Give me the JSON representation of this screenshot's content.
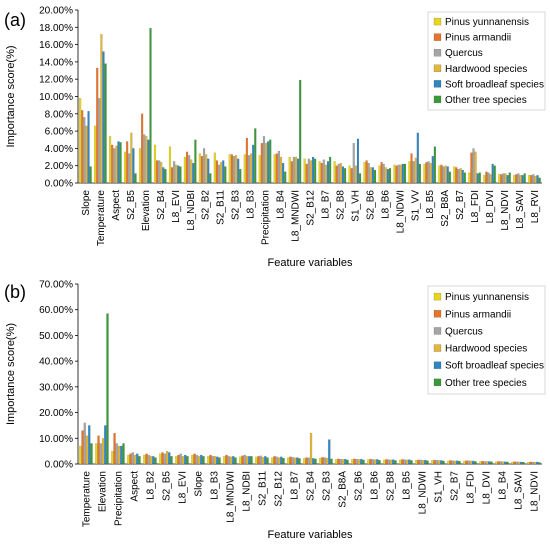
{
  "series_colors": [
    "#e8d51e",
    "#e8742c",
    "#a5a5a5",
    "#e2b73b",
    "#2f86c3",
    "#3a9a3a"
  ],
  "chart_data": [
    {
      "type": "bar",
      "panel_label": "(a)",
      "xlabel": "Feature variables",
      "ylabel": "Importance score(%)",
      "ylim": [
        0,
        20
      ],
      "yticks": [
        "0.00%",
        "2.00%",
        "4.00%",
        "6.00%",
        "8.00%",
        "10.00%",
        "12.00%",
        "14.00%",
        "16.00%",
        "18.00%",
        "20.00%"
      ],
      "legend_position": "top-right",
      "categories": [
        "Slope",
        "Temperature",
        "Aspect",
        "S2_B5",
        "Elevation",
        "S2_B4",
        "L8_EVI",
        "L8_NDBI",
        "S2_B2",
        "S2_B11",
        "S2_B3",
        "L8_B3",
        "Precipitation",
        "L8_B4",
        "L8_MNDWI",
        "S2_B12",
        "L8_B7",
        "S2_B8",
        "S1_VH",
        "S2_B6",
        "L8_B6",
        "L8_NDWI",
        "S1_VV",
        "L8_B5",
        "S2_B8A",
        "S2_B7",
        "L8_FDI",
        "L8_DVI",
        "L8_NDVI",
        "L8_SAVI",
        "L8_RVI"
      ],
      "series": [
        {
          "name": "Pinus yunnanensis",
          "values": [
            9.8,
            6.6,
            5.4,
            3.6,
            4.0,
            4.4,
            4.2,
            3.0,
            3.4,
            3.5,
            3.3,
            3.3,
            3.2,
            3.3,
            3.0,
            2.8,
            2.5,
            2.5,
            2.0,
            2.4,
            2.0,
            2.1,
            2.5,
            2.2,
            2.0,
            1.9,
            1.2,
            0.9,
            1.0,
            0.9,
            0.9
          ]
        },
        {
          "name": "Pinus armandii",
          "values": [
            8.4,
            13.3,
            4.4,
            4.8,
            8.0,
            2.6,
            1.8,
            3.6,
            3.1,
            2.6,
            3.3,
            5.2,
            4.6,
            3.4,
            2.5,
            2.2,
            2.3,
            2.0,
            1.7,
            2.6,
            2.4,
            2.0,
            3.4,
            2.4,
            2.1,
            1.8,
            3.5,
            1.3,
            1.0,
            1.0,
            0.9
          ]
        },
        {
          "name": "Quercus",
          "values": [
            7.6,
            9.8,
            4.0,
            3.4,
            5.6,
            2.6,
            2.5,
            3.2,
            4.0,
            2.1,
            3.1,
            3.2,
            5.4,
            3.7,
            3.0,
            2.8,
            2.7,
            2.2,
            4.6,
            2.3,
            2.2,
            2.1,
            2.5,
            2.5,
            1.9,
            1.6,
            4.0,
            1.2,
            1.1,
            1.1,
            1.0
          ]
        },
        {
          "name": "Hardwood species",
          "values": [
            6.6,
            17.2,
            4.3,
            5.8,
            5.4,
            2.4,
            2.1,
            2.7,
            3.3,
            2.4,
            3.2,
            3.4,
            4.6,
            3.0,
            3.0,
            2.6,
            2.1,
            2.3,
            2.0,
            1.8,
            1.8,
            2.1,
            2.9,
            2.3,
            2.0,
            1.7,
            3.6,
            1.0,
            1.1,
            0.9,
            0.8
          ]
        },
        {
          "name": "Soft broadleaf species",
          "values": [
            8.3,
            15.2,
            4.8,
            4.0,
            5.0,
            1.8,
            2.0,
            2.3,
            2.8,
            2.6,
            2.8,
            4.4,
            4.8,
            2.3,
            2.8,
            3.0,
            2.5,
            1.9,
            5.1,
            1.8,
            1.6,
            2.2,
            5.8,
            3.1,
            1.9,
            1.5,
            1.1,
            2.2,
            0.9,
            0.9,
            0.9
          ]
        },
        {
          "name": "Other tree species",
          "values": [
            1.9,
            13.8,
            4.7,
            1.1,
            17.9,
            1.6,
            1.9,
            5.0,
            1.1,
            1.9,
            1.6,
            6.3,
            5.0,
            1.3,
            11.9,
            2.8,
            3.0,
            1.7,
            1.1,
            1.5,
            1.7,
            2.2,
            2.2,
            4.2,
            1.3,
            1.2,
            1.2,
            2.0,
            1.2,
            1.1,
            0.6
          ]
        }
      ]
    },
    {
      "type": "bar",
      "panel_label": "(b)",
      "xlabel": "Feature variables",
      "ylabel": "Importance score(%)",
      "ylim": [
        0,
        70
      ],
      "yticks": [
        "0.00%",
        "10.00%",
        "20.00%",
        "30.00%",
        "40.00%",
        "50.00%",
        "60.00%",
        "70.00%"
      ],
      "legend_position": "top-right",
      "categories": [
        "Temperature",
        "Elevation",
        "Precipitation",
        "Aspect",
        "L8_B2",
        "S2_B5",
        "L8_EVI",
        "Slope",
        "L8_B3",
        "L8_MNDWI",
        "L8_NDBI",
        "S2_B11",
        "S2_B12",
        "L8_B7",
        "S2_B4",
        "S2_B3",
        "S2_B8A",
        "S2_B6",
        "L8_B6",
        "S2_B8",
        "L8_B5",
        "L8_NDWI",
        "S1_VH",
        "S2_B7",
        "L8_FDI",
        "L8_DVI",
        "L8_B4",
        "L8_SAVI",
        "L8_NDVI"
      ],
      "series": [
        {
          "name": "Pinus yunnanensis",
          "values": [
            7.0,
            8.0,
            5.0,
            3.5,
            3.5,
            4.0,
            3.0,
            3.5,
            3.0,
            3.0,
            2.8,
            2.8,
            2.5,
            2.5,
            2.2,
            2.3,
            1.8,
            1.8,
            1.7,
            1.6,
            1.6,
            1.5,
            1.4,
            1.2,
            1.2,
            1.0,
            0.9,
            0.8,
            0.7
          ]
        },
        {
          "name": "Pinus armandii",
          "values": [
            13.0,
            11.0,
            12.0,
            4.0,
            4.0,
            4.5,
            3.5,
            4.0,
            3.5,
            3.5,
            3.2,
            3.0,
            3.0,
            2.8,
            2.5,
            2.6,
            2.0,
            2.0,
            1.9,
            1.8,
            1.8,
            1.6,
            1.5,
            1.4,
            1.3,
            1.1,
            1.0,
            0.9,
            0.8
          ]
        },
        {
          "name": "Quercus",
          "values": [
            16.0,
            8.0,
            8.0,
            4.5,
            3.5,
            4.0,
            4.0,
            3.5,
            3.0,
            3.0,
            3.5,
            3.2,
            2.8,
            2.6,
            2.4,
            2.5,
            1.9,
            1.9,
            1.8,
            1.7,
            1.7,
            1.6,
            1.5,
            1.3,
            1.3,
            1.0,
            1.0,
            0.9,
            0.8
          ]
        },
        {
          "name": "Hardwood species",
          "values": [
            11.0,
            10.0,
            7.0,
            3.5,
            3.0,
            5.0,
            3.0,
            3.0,
            3.0,
            2.8,
            3.0,
            2.6,
            2.5,
            2.4,
            12.0,
            2.3,
            1.8,
            1.8,
            1.7,
            1.6,
            1.6,
            1.5,
            1.4,
            1.2,
            1.2,
            1.0,
            0.9,
            0.8,
            0.7
          ]
        },
        {
          "name": "Soft broadleaf species",
          "values": [
            15.0,
            15.0,
            7.0,
            4.0,
            3.0,
            4.5,
            3.5,
            3.5,
            2.8,
            3.0,
            3.0,
            3.0,
            2.8,
            2.5,
            2.2,
            9.5,
            1.9,
            1.9,
            1.8,
            1.7,
            1.7,
            1.5,
            1.4,
            1.3,
            1.2,
            1.0,
            0.9,
            0.8,
            0.8
          ]
        },
        {
          "name": "Other tree species",
          "values": [
            8.0,
            58.5,
            8.0,
            3.0,
            2.5,
            3.0,
            3.0,
            3.0,
            2.5,
            2.5,
            3.0,
            2.5,
            2.3,
            2.2,
            2.0,
            2.0,
            1.6,
            1.6,
            1.5,
            1.4,
            1.4,
            1.3,
            1.2,
            1.1,
            1.0,
            0.9,
            0.8,
            0.7,
            0.6
          ]
        }
      ]
    }
  ]
}
